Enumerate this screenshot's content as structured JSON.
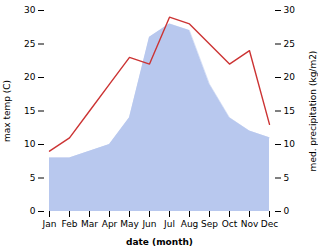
{
  "chart_data": {
    "type": "line",
    "categories": [
      "Jan",
      "Feb",
      "Mar",
      "Apr",
      "May",
      "Jun",
      "Jul",
      "Aug",
      "Sep",
      "Oct",
      "Nov",
      "Dec"
    ],
    "xlabel": "date (month)",
    "ylabel": "max temp (C)",
    "y2label": "med. precipitation (kg/m2)",
    "ylim": [
      0,
      30
    ],
    "yticks": [
      0,
      5,
      10,
      15,
      20,
      25,
      30
    ],
    "y2lim": [
      0,
      30
    ],
    "y2ticks": [
      0,
      5,
      10,
      15,
      20,
      25,
      30
    ],
    "series": [
      {
        "type": "area",
        "axis": "y2",
        "color": "#b8c8ee",
        "values": [
          8,
          8,
          9,
          10,
          14,
          26,
          28,
          27,
          19,
          14,
          12,
          11
        ]
      },
      {
        "type": "line",
        "color": "#cc3333",
        "values": [
          9,
          11,
          15,
          19,
          23,
          22,
          29,
          28,
          25,
          22,
          24,
          13
        ]
      }
    ]
  }
}
